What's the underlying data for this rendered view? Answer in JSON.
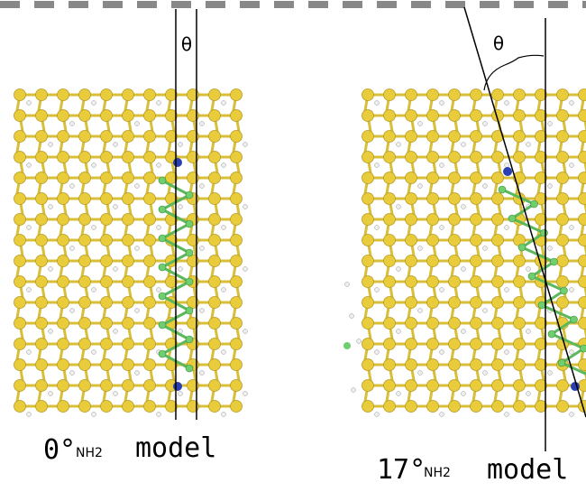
{
  "panels": [
    {
      "theta": "θ",
      "angle": "0°",
      "subscript": "NH2",
      "label": "model"
    },
    {
      "theta": "θ",
      "angle": "17°",
      "subscript": "NH2",
      "label": "model"
    }
  ]
}
